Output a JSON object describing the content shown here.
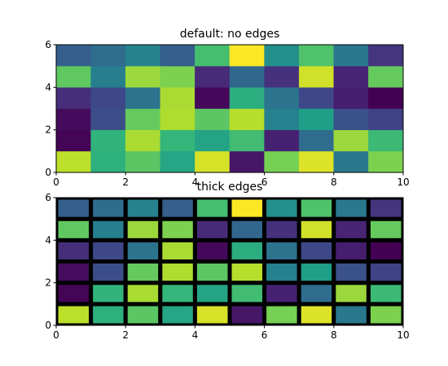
{
  "chart_data": [
    {
      "type": "heatmap",
      "title": "default: no edges",
      "colormap": "viridis",
      "xlim": [
        0,
        10
      ],
      "ylim": [
        0,
        6
      ],
      "xticks": [
        0,
        2,
        4,
        6,
        8,
        10
      ],
      "yticks": [
        0,
        2,
        4,
        6
      ],
      "edgecolor": null,
      "linewidth": 0,
      "values": [
        [
          0.9,
          0.63,
          0.74,
          0.59,
          0.94,
          0.06,
          0.79,
          0.95,
          0.4,
          0.8
        ],
        [
          0.01,
          0.65,
          0.87,
          0.66,
          0.58,
          0.69,
          0.09,
          0.35,
          0.85,
          0.68
        ],
        [
          0.03,
          0.24,
          0.76,
          0.88,
          0.74,
          0.89,
          0.44,
          0.56,
          0.25,
          0.2
        ],
        [
          0.13,
          0.22,
          0.38,
          0.87,
          0.02,
          0.62,
          0.38,
          0.22,
          0.08,
          0.0
        ],
        [
          0.75,
          0.43,
          0.85,
          0.8,
          0.12,
          0.33,
          0.14,
          0.93,
          0.1,
          0.76
        ],
        [
          0.3,
          0.35,
          0.45,
          0.3,
          0.7,
          1.0,
          0.5,
          0.72,
          0.4,
          0.15
        ]
      ]
    },
    {
      "type": "heatmap",
      "title": "thick edges",
      "colormap": "viridis",
      "xlim": [
        0,
        10
      ],
      "ylim": [
        0,
        6
      ],
      "xticks": [
        0,
        2,
        4,
        6,
        8,
        10
      ],
      "yticks": [
        0,
        2,
        4,
        6
      ],
      "edgecolor": "#000000",
      "linewidth": 5,
      "values": [
        [
          0.9,
          0.63,
          0.74,
          0.59,
          0.94,
          0.06,
          0.79,
          0.95,
          0.4,
          0.8
        ],
        [
          0.01,
          0.65,
          0.87,
          0.66,
          0.58,
          0.69,
          0.09,
          0.35,
          0.85,
          0.68
        ],
        [
          0.03,
          0.24,
          0.76,
          0.88,
          0.74,
          0.89,
          0.44,
          0.56,
          0.25,
          0.2
        ],
        [
          0.13,
          0.22,
          0.38,
          0.87,
          0.02,
          0.62,
          0.38,
          0.22,
          0.08,
          0.0
        ],
        [
          0.75,
          0.43,
          0.85,
          0.8,
          0.12,
          0.33,
          0.14,
          0.93,
          0.1,
          0.76
        ],
        [
          0.3,
          0.35,
          0.45,
          0.3,
          0.7,
          1.0,
          0.5,
          0.72,
          0.4,
          0.15
        ]
      ]
    }
  ]
}
